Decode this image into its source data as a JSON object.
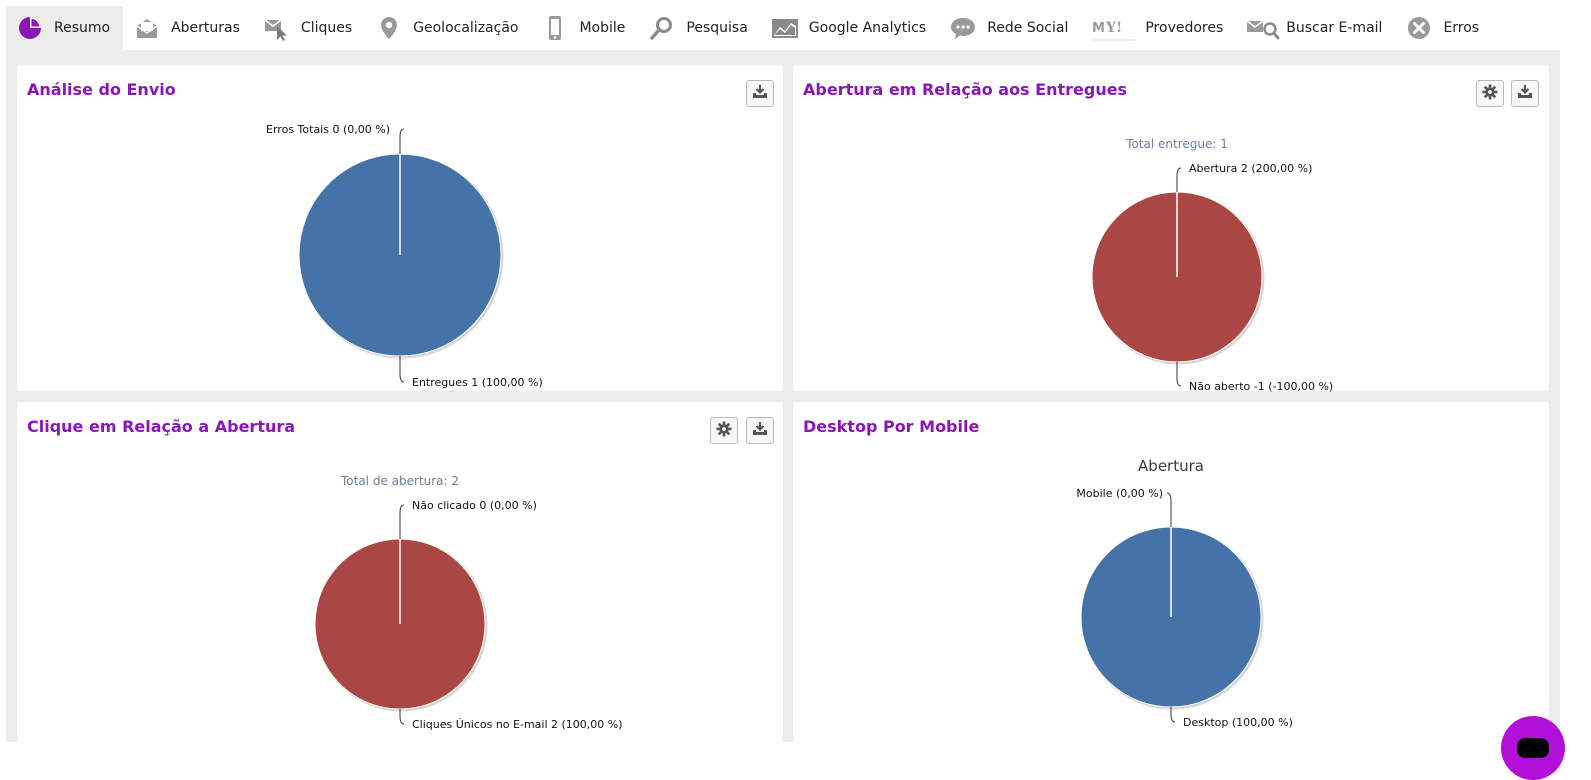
{
  "tabs": [
    {
      "label": "Resumo",
      "icon": "pie-chart-icon",
      "active": true
    },
    {
      "label": "Aberturas",
      "icon": "open-envelope-icon",
      "active": false
    },
    {
      "label": "Cliques",
      "icon": "cursor-click-icon",
      "active": false
    },
    {
      "label": "Geolocalização",
      "icon": "map-pin-icon",
      "active": false
    },
    {
      "label": "Mobile",
      "icon": "smartphone-icon",
      "active": false
    },
    {
      "label": "Pesquisa",
      "icon": "magnifier-icon",
      "active": false
    },
    {
      "label": "Google Analytics",
      "icon": "area-chart-icon",
      "active": false
    },
    {
      "label": "Rede Social",
      "icon": "speech-bubble-icon",
      "active": false
    },
    {
      "label": "Provedores",
      "icon": "providers-logo-icon",
      "active": false
    },
    {
      "label": "Buscar E-mail",
      "icon": "email-search-icon",
      "active": false
    },
    {
      "label": "Erros",
      "icon": "error-x-icon",
      "active": false
    }
  ],
  "colors": {
    "accent": "#8a16b8",
    "blue": "#4572a7",
    "red": "#aa4643",
    "chat": "#b20fd8"
  },
  "panels": {
    "envio": {
      "title": "Análise do Envio"
    },
    "entregues": {
      "title": "Abertura em Relação aos Entregues"
    },
    "clique": {
      "title": "Clique em Relação a Abertura"
    },
    "mobile": {
      "title": "Desktop Por Mobile"
    }
  },
  "chart_data": [
    {
      "type": "pie",
      "title": "",
      "slices": [
        {
          "name": "Erros Totais",
          "label": "Erros Totais 0 (0,00 %)",
          "value": 0,
          "color": "#aa4643"
        },
        {
          "name": "Entregues",
          "label": "Entregues 1 (100,00 %)",
          "value": 1,
          "color": "#4572a7"
        }
      ]
    },
    {
      "type": "pie",
      "title": "",
      "subtitle": "Total entregue: 1",
      "slices": [
        {
          "name": "Abertura",
          "label": "Abertura 2 (200,00 %)",
          "value": 2,
          "color": "#aa4643"
        },
        {
          "name": "Não aberto",
          "label": "Não aberto -1 (-100,00 %)",
          "value": -1,
          "color": "#4572a7"
        }
      ]
    },
    {
      "type": "pie",
      "title": "",
      "subtitle": "Total de abertura: 2",
      "slices": [
        {
          "name": "Não clicado",
          "label": "Não clicado 0 (0,00 %)",
          "value": 0,
          "color": "#4572a7"
        },
        {
          "name": "Cliques Únicos no E-mail",
          "label": "Cliques Únicos no E-mail 2 (100,00 %)",
          "value": 2,
          "color": "#aa4643"
        }
      ]
    },
    {
      "type": "pie",
      "title": "Abertura",
      "slices": [
        {
          "name": "Mobile",
          "label": "Mobile (0,00 %)",
          "value": 0,
          "color": "#aa4643"
        },
        {
          "name": "Desktop",
          "label": "Desktop (100,00 %)",
          "value": 100,
          "color": "#4572a7"
        }
      ]
    }
  ]
}
